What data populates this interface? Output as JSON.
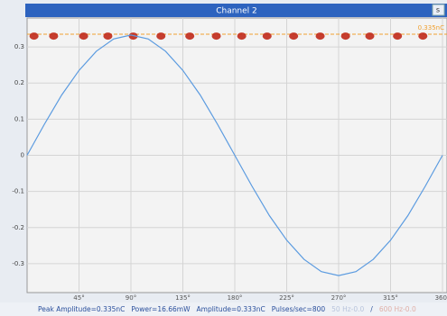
{
  "chart_data": {
    "type": "scatter",
    "title": "Channel 2",
    "window_button": "s",
    "xlim": [
      0,
      360
    ],
    "ylim": [
      -0.38,
      0.38
    ],
    "xticks": [
      {
        "value": 45,
        "label": "45°"
      },
      {
        "value": 90,
        "label": "90°"
      },
      {
        "value": 135,
        "label": "135°"
      },
      {
        "value": 180,
        "label": "180°"
      },
      {
        "value": 225,
        "label": "225°"
      },
      {
        "value": 270,
        "label": "270°"
      },
      {
        "value": 315,
        "label": "315°"
      },
      {
        "value": 360,
        "label": "360°"
      }
    ],
    "yticks": [
      0.3,
      0.2,
      0.1,
      0,
      -0.1,
      -0.2,
      -0.3
    ],
    "grid": true,
    "threshold": {
      "value": 0.335,
      "label": "0.335nC",
      "color": "#f0a030"
    },
    "series": [
      {
        "color": "#c0291a",
        "x": [
          6,
          23,
          49,
          70,
          92,
          116,
          141,
          164,
          186,
          208,
          231,
          254,
          276,
          297,
          321,
          343
        ],
        "values": [
          0.33,
          0.33,
          0.33,
          0.33,
          0.33,
          0.33,
          0.33,
          0.33,
          0.33,
          0.33,
          0.33,
          0.33,
          0.33,
          0.33,
          0.33,
          0.33
        ]
      },
      {
        "type": "line",
        "color": "#5b9be0",
        "x": [
          0,
          15,
          30,
          45,
          60,
          75,
          90,
          105,
          120,
          135,
          150,
          165,
          180,
          195,
          210,
          225,
          240,
          255,
          270,
          285,
          300,
          315,
          330,
          345,
          360
        ],
        "values": [
          0,
          0.086,
          0.167,
          0.235,
          0.288,
          0.322,
          0.333,
          0.322,
          0.288,
          0.235,
          0.167,
          0.086,
          0,
          -0.086,
          -0.167,
          -0.235,
          -0.288,
          -0.322,
          -0.333,
          -0.322,
          -0.288,
          -0.235,
          -0.167,
          -0.086,
          0
        ]
      }
    ],
    "status": [
      {
        "text": "Peak Amplitude=0.335nC",
        "color": "#2a4f9c"
      },
      {
        "text": "Power=16.66mW",
        "color": "#2a4f9c"
      },
      {
        "text": "Amplitude=0.333nC",
        "color": "#2a4f9c"
      },
      {
        "text": "Pulses/sec=800",
        "color": "#2a4f9c"
      },
      {
        "text": "50 Hz-0.0",
        "color": "#b8c4dc"
      },
      {
        "text": "/",
        "color": "#2a4f9c"
      },
      {
        "text": "600 Hz-0.0",
        "color": "#e0b0a8"
      }
    ]
  }
}
